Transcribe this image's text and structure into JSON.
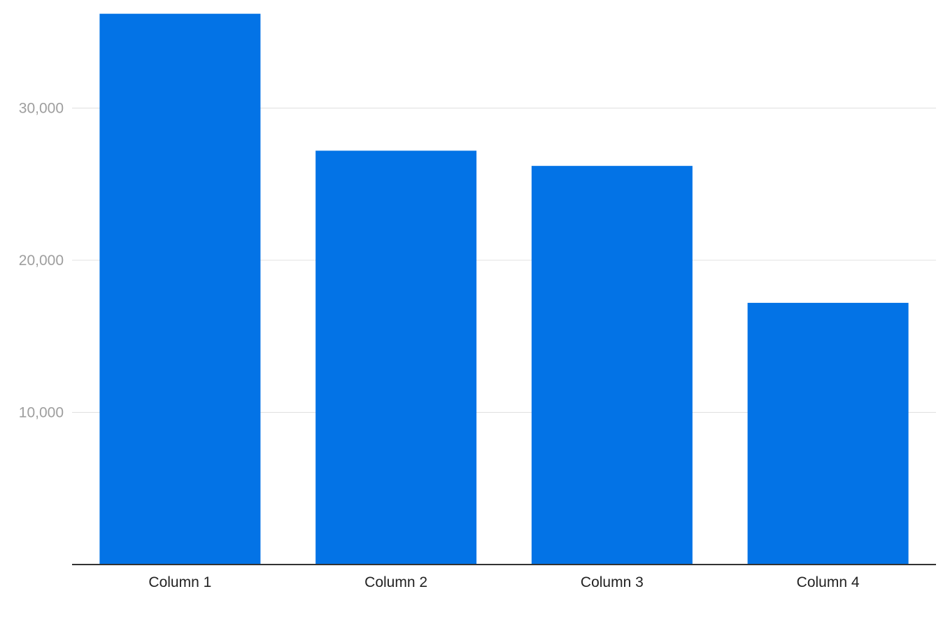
{
  "chart_data": {
    "type": "bar",
    "title": "",
    "xlabel": "",
    "ylabel": "",
    "categories": [
      "Column 1",
      "Column 2",
      "Column 3",
      "Column 4"
    ],
    "values": [
      36200,
      27200,
      26200,
      17200
    ],
    "ylim": [
      0,
      36200
    ],
    "yticks": [
      10000,
      20000,
      30000
    ],
    "ytick_labels": [
      "10,000",
      "20,000",
      "30,000"
    ],
    "grid": true,
    "legend": "none",
    "bar_color": "#0373e6"
  }
}
